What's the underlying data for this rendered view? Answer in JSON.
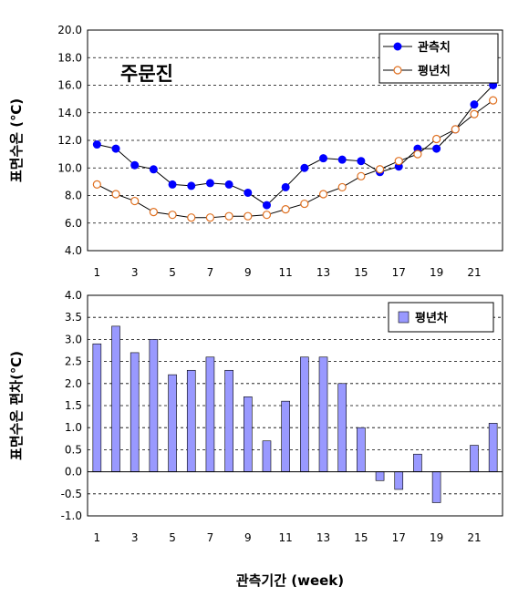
{
  "chart_data": [
    {
      "type": "line",
      "annotation": "주문진",
      "ylabel": "표면수온 (℃)",
      "ylim": [
        4.0,
        20.0
      ],
      "yticks": [
        "4.0",
        "6.0",
        "8.0",
        "10.0",
        "12.0",
        "14.0",
        "16.0",
        "18.0",
        "20.0"
      ],
      "xlim": [
        1,
        22
      ],
      "xticks": [
        "1",
        "3",
        "5",
        "7",
        "9",
        "11",
        "13",
        "15",
        "17",
        "19",
        "21"
      ],
      "grid": "horizontal-dashed",
      "legend_position": "top-right",
      "series": [
        {
          "name": "관측치",
          "marker": "filled-circle",
          "color": "#0000FF",
          "x": [
            1,
            2,
            3,
            4,
            5,
            6,
            7,
            8,
            9,
            10,
            11,
            12,
            13,
            14,
            15,
            16,
            17,
            18,
            19,
            20,
            21,
            22
          ],
          "values": [
            11.7,
            11.4,
            10.2,
            9.9,
            8.8,
            8.7,
            8.9,
            8.8,
            8.2,
            7.3,
            8.6,
            10.0,
            10.7,
            10.6,
            10.5,
            9.7,
            10.1,
            11.4,
            11.4,
            12.8,
            14.6,
            16.0
          ]
        },
        {
          "name": "평년치",
          "marker": "open-circle",
          "color": "#E07020",
          "x": [
            1,
            2,
            3,
            4,
            5,
            6,
            7,
            8,
            9,
            10,
            11,
            12,
            13,
            14,
            15,
            16,
            17,
            18,
            19,
            20,
            21,
            22
          ],
          "values": [
            8.8,
            8.1,
            7.6,
            6.8,
            6.6,
            6.4,
            6.4,
            6.5,
            6.5,
            6.6,
            7.0,
            7.4,
            8.1,
            8.6,
            9.4,
            9.9,
            10.5,
            11.0,
            12.1,
            12.8,
            13.9,
            14.9
          ]
        }
      ]
    },
    {
      "type": "bar",
      "ylabel": "표면수온 편차(℃)",
      "ylim": [
        -1.0,
        4.0
      ],
      "yticks": [
        "-1.0",
        "-0.5",
        "0.0",
        "0.5",
        "1.0",
        "1.5",
        "2.0",
        "2.5",
        "3.0",
        "3.5",
        "4.0"
      ],
      "xticks": [
        "1",
        "3",
        "5",
        "7",
        "9",
        "11",
        "13",
        "15",
        "17",
        "19",
        "21"
      ],
      "grid": "horizontal-dashed",
      "legend_position": "top-right",
      "series": [
        {
          "name": "평년차",
          "color": "#9999FF",
          "x": [
            1,
            2,
            3,
            4,
            5,
            6,
            7,
            8,
            9,
            10,
            11,
            12,
            13,
            14,
            15,
            16,
            17,
            18,
            19,
            20,
            21,
            22
          ],
          "values": [
            2.9,
            3.3,
            2.7,
            3.0,
            2.2,
            2.3,
            2.6,
            2.3,
            1.7,
            0.7,
            1.6,
            2.6,
            2.6,
            2.0,
            1.0,
            -0.2,
            -0.4,
            0.4,
            -0.7,
            0.0,
            0.6,
            1.1
          ]
        }
      ]
    }
  ],
  "xlabel": "관측기간 (week)"
}
